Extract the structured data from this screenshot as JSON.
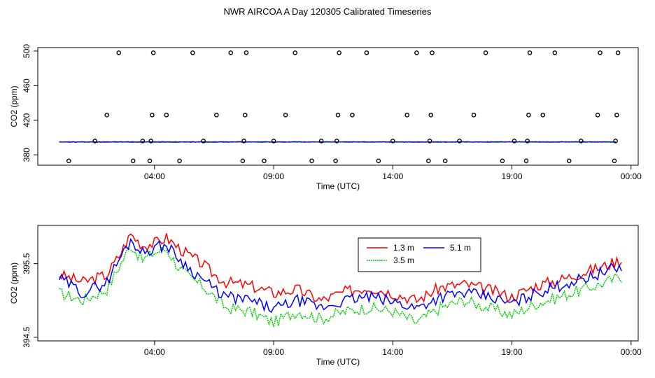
{
  "title": "NWR AIRCOA A  Day 120305  Calibrated Timeseries",
  "chart_data": [
    {
      "type": "scatter",
      "xlabel": "Time (UTC)",
      "ylabel": "CO2 (ppm)",
      "x_ticks": [
        4,
        9,
        14,
        19,
        24
      ],
      "x_tick_labels": [
        "04:00",
        "09:00",
        "14:00",
        "19:00",
        "00:00"
      ],
      "y_ticks": [
        380,
        420,
        460,
        500
      ],
      "y_tick_labels": [
        "380",
        "420",
        "460",
        "500"
      ],
      "xlim": [
        -0.9,
        24.3
      ],
      "ylim": [
        368,
        504
      ],
      "calibration_points": {
        "hours": [
          0.4,
          1.5,
          2.0,
          2.5,
          3.1,
          3.5,
          3.8,
          3.85,
          3.9,
          3.95,
          4.5,
          5.05,
          5.6,
          6.05,
          6.6,
          7.2,
          7.7,
          7.75,
          7.8,
          7.85,
          8.6,
          9.0,
          9.5,
          9.9,
          10.6,
          11.0,
          11.6,
          11.65,
          11.7,
          11.75,
          12.3,
          12.9,
          13.4,
          14.0,
          14.6,
          15.0,
          15.5,
          15.55,
          15.6,
          15.65,
          16.2,
          16.8,
          17.4,
          17.9,
          18.6,
          19.1,
          19.6,
          19.65,
          19.7,
          19.75,
          20.3,
          20.8,
          21.4,
          21.9,
          22.6,
          22.7,
          23.3,
          23.35,
          23.4,
          23.45
        ],
        "co2": [
          373,
          396,
          426,
          498,
          373,
          396,
          373,
          396,
          426,
          498,
          426,
          373,
          498,
          396,
          426,
          498,
          373,
          396,
          426,
          498,
          373,
          396,
          426,
          498,
          373,
          396,
          373,
          396,
          426,
          498,
          426,
          498,
          373,
          396,
          426,
          498,
          373,
          396,
          426,
          498,
          373,
          396,
          426,
          498,
          373,
          396,
          373,
          396,
          426,
          498,
          426,
          498,
          373,
          396,
          426,
          498,
          373,
          396,
          426,
          498
        ]
      },
      "series": [
        {
          "name": "1.3 m",
          "color": "#ff0000",
          "level": 395
        },
        {
          "name": "3.5 m",
          "color": "#00cc00",
          "level": 394.6
        },
        {
          "name": "5.1 m",
          "color": "#0000ff",
          "level": 394.9
        }
      ]
    },
    {
      "type": "line",
      "xlabel": "Time (UTC)",
      "ylabel": "CO2 (ppm)",
      "x_ticks": [
        4,
        9,
        14,
        19,
        24
      ],
      "x_tick_labels": [
        "04:00",
        "09:00",
        "14:00",
        "19:00",
        "00:00"
      ],
      "y_ticks": [
        394.5,
        395.5
      ],
      "y_tick_labels": [
        "394.5",
        "395.5"
      ],
      "xlim": [
        -0.9,
        24.3
      ],
      "ylim": [
        394.45,
        396.02
      ],
      "legend_position": "top-right",
      "series": [
        {
          "name": "1.3 m",
          "color": "#ff0000",
          "x": [
            0,
            1,
            2,
            2.5,
            3,
            3.5,
            4,
            4.5,
            5,
            5.5,
            6,
            6.5,
            7,
            8,
            9,
            10,
            11,
            12,
            13,
            14,
            15,
            16,
            17,
            18,
            19,
            20,
            21,
            22,
            23,
            23.5,
            24
          ],
          "y": [
            395.35,
            395.25,
            395.35,
            395.6,
            395.9,
            395.75,
            395.78,
            395.85,
            395.72,
            395.6,
            395.5,
            395.35,
            395.25,
            395.2,
            395.1,
            395.15,
            395.0,
            395.12,
            395.18,
            395.1,
            395.0,
            395.18,
            395.22,
            395.15,
            395.05,
            395.2,
            395.28,
            395.38,
            395.48,
            395.55,
            395.5
          ]
        },
        {
          "name": "3.5 m",
          "color": "#00cc00",
          "x": [
            0,
            1,
            2,
            2.5,
            3,
            3.5,
            4,
            4.5,
            5,
            5.5,
            6,
            6.5,
            7,
            8,
            9,
            10,
            11,
            12,
            13,
            14,
            15,
            16,
            17,
            18,
            19,
            20,
            21,
            22,
            23,
            23.5,
            24
          ],
          "y": [
            395.1,
            395.0,
            395.15,
            395.45,
            395.75,
            395.55,
            395.65,
            395.7,
            395.45,
            395.3,
            395.2,
            395.05,
            394.9,
            394.85,
            394.7,
            394.85,
            394.75,
            394.85,
            394.9,
            394.85,
            394.7,
            394.9,
            395.0,
            394.9,
            394.8,
            394.95,
            395.05,
            395.15,
            395.25,
            395.32,
            395.3
          ]
        },
        {
          "name": "5.1 m",
          "color": "#0000ff",
          "x": [
            0,
            1,
            2,
            2.5,
            3,
            3.5,
            4,
            4.5,
            5,
            5.5,
            6,
            6.5,
            7,
            8,
            9,
            10,
            11,
            12,
            13,
            14,
            15,
            16,
            17,
            18,
            19,
            20,
            21,
            22,
            23,
            23.5,
            24
          ],
          "y": [
            395.3,
            395.1,
            395.25,
            395.55,
            395.82,
            395.65,
            395.72,
            395.75,
            395.58,
            395.42,
            395.3,
            395.15,
            395.05,
            395.0,
            394.88,
            395.0,
            394.9,
            395.0,
            395.05,
            394.98,
            394.9,
            395.05,
            395.1,
            395.05,
            394.95,
            395.1,
            395.2,
            395.3,
            395.4,
            395.45,
            395.45
          ]
        }
      ]
    }
  ]
}
